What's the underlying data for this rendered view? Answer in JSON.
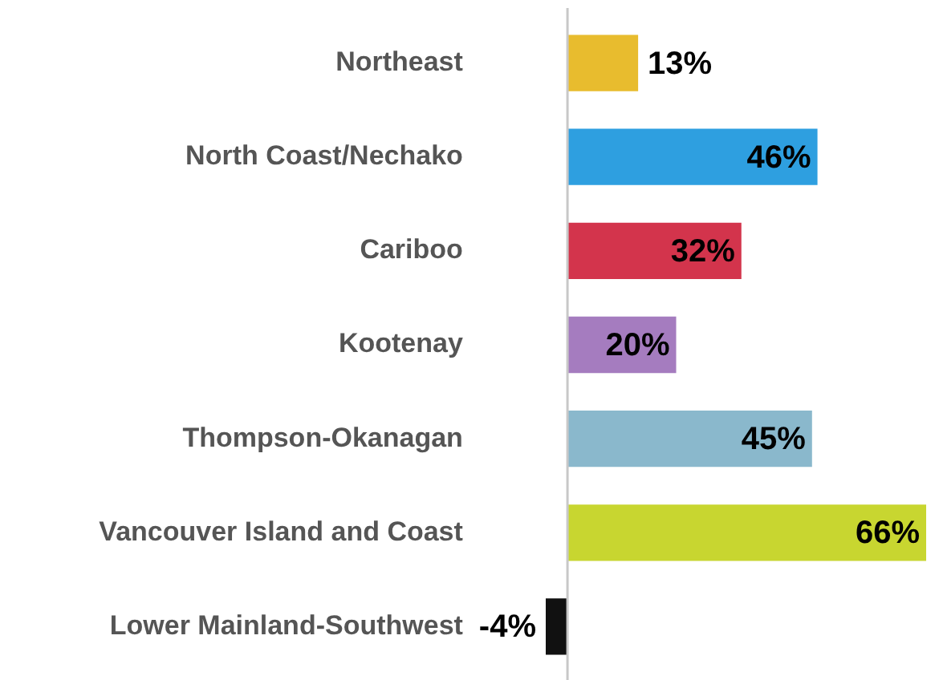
{
  "chart_data": {
    "type": "bar",
    "orientation": "horizontal",
    "categories": [
      "Northeast",
      "North Coast/Nechako",
      "Cariboo",
      "Kootenay",
      "Thompson-Okanagan",
      "Vancouver Island and Coast",
      "Lower Mainland-Southwest"
    ],
    "values": [
      13,
      46,
      32,
      20,
      45,
      66,
      -4
    ],
    "colors": [
      "#e8bc2e",
      "#2e9fe0",
      "#d3344c",
      "#a57cbf",
      "#8ab8cc",
      "#c8d630",
      "#111111"
    ],
    "value_labels": [
      "13%",
      "46%",
      "32%",
      "20%",
      "45%",
      "66%",
      "-4%"
    ]
  }
}
